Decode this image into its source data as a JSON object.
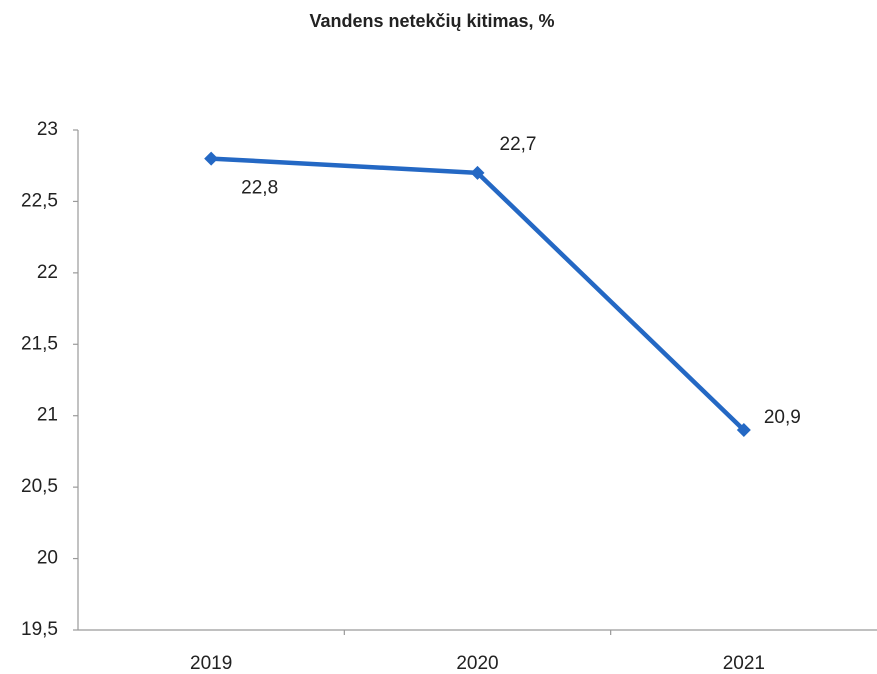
{
  "chart_data": {
    "type": "line",
    "title": "Vandens netekčių kitimas, %",
    "categories": [
      "2019",
      "2020",
      "2021"
    ],
    "series": [
      {
        "name": "Vandens netekčių kitimas",
        "color": "#2468c4",
        "values": [
          22.8,
          22.7,
          20.9
        ],
        "value_labels": [
          "22,8",
          "22,7",
          "20,9"
        ]
      }
    ],
    "ylim": [
      19.5,
      23
    ],
    "yticks": [
      {
        "value": 19.5,
        "label": "19,5"
      },
      20,
      {
        "value": 20.5,
        "label": "20,5"
      },
      21,
      {
        "value": 21.5,
        "label": "21,5"
      },
      22,
      {
        "value": 22.5,
        "label": "22,5"
      },
      23
    ],
    "grid": false,
    "legend": false
  }
}
